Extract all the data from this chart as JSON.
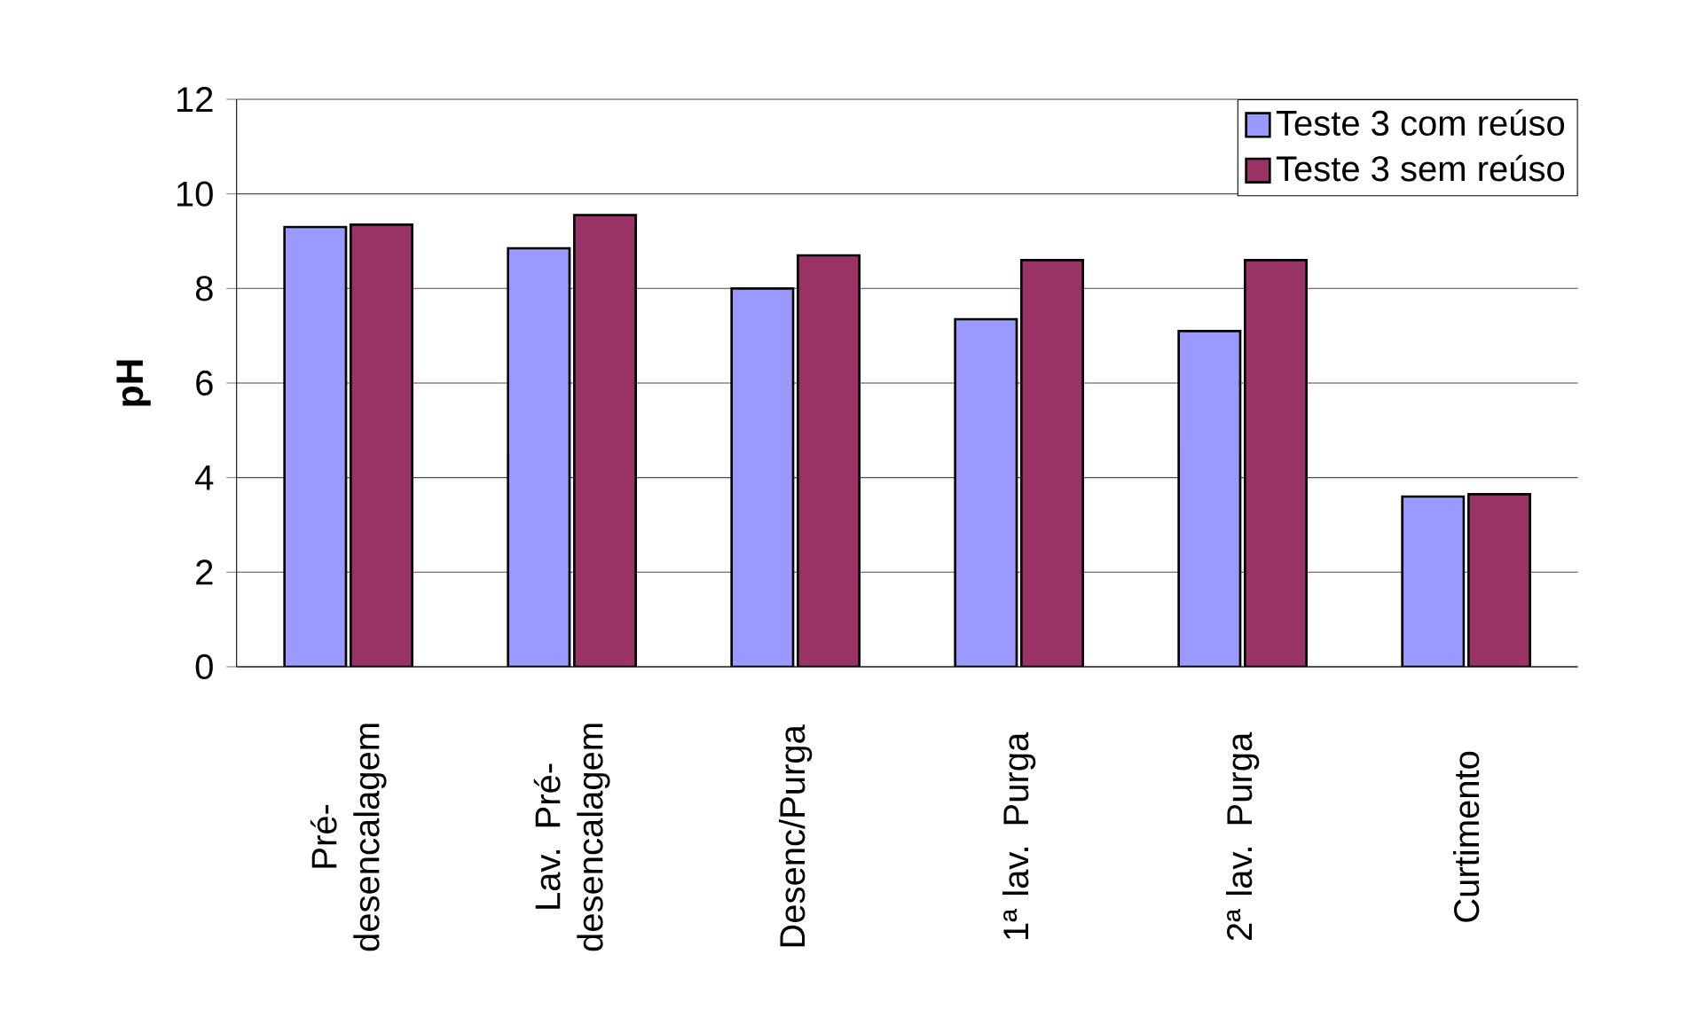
{
  "chart_data": {
    "type": "bar",
    "ylabel": "**pH**",
    "categories": [
      "Pré-desencalagem",
      "Lav. Pré-desencalagem",
      "Desenc/Purga",
      "1ª lav. Purga",
      "2ª lav. Purga",
      "Curtimento"
    ],
    "series": [
      {
        "name": "Teste 3 com reúso",
        "color": "#9999ff",
        "values": [
          9.3,
          8.85,
          8.0,
          7.35,
          7.1,
          3.6
        ]
      },
      {
        "name": "Teste 3 sem reúso",
        "color": "#993366",
        "values": [
          9.35,
          9.55,
          8.7,
          8.6,
          8.6,
          3.65
        ]
      }
    ],
    "ylim": [
      0,
      12
    ],
    "yticks": [
      0,
      2,
      4,
      6,
      8,
      10,
      12
    ],
    "grid": "y",
    "legend": "top right"
  }
}
